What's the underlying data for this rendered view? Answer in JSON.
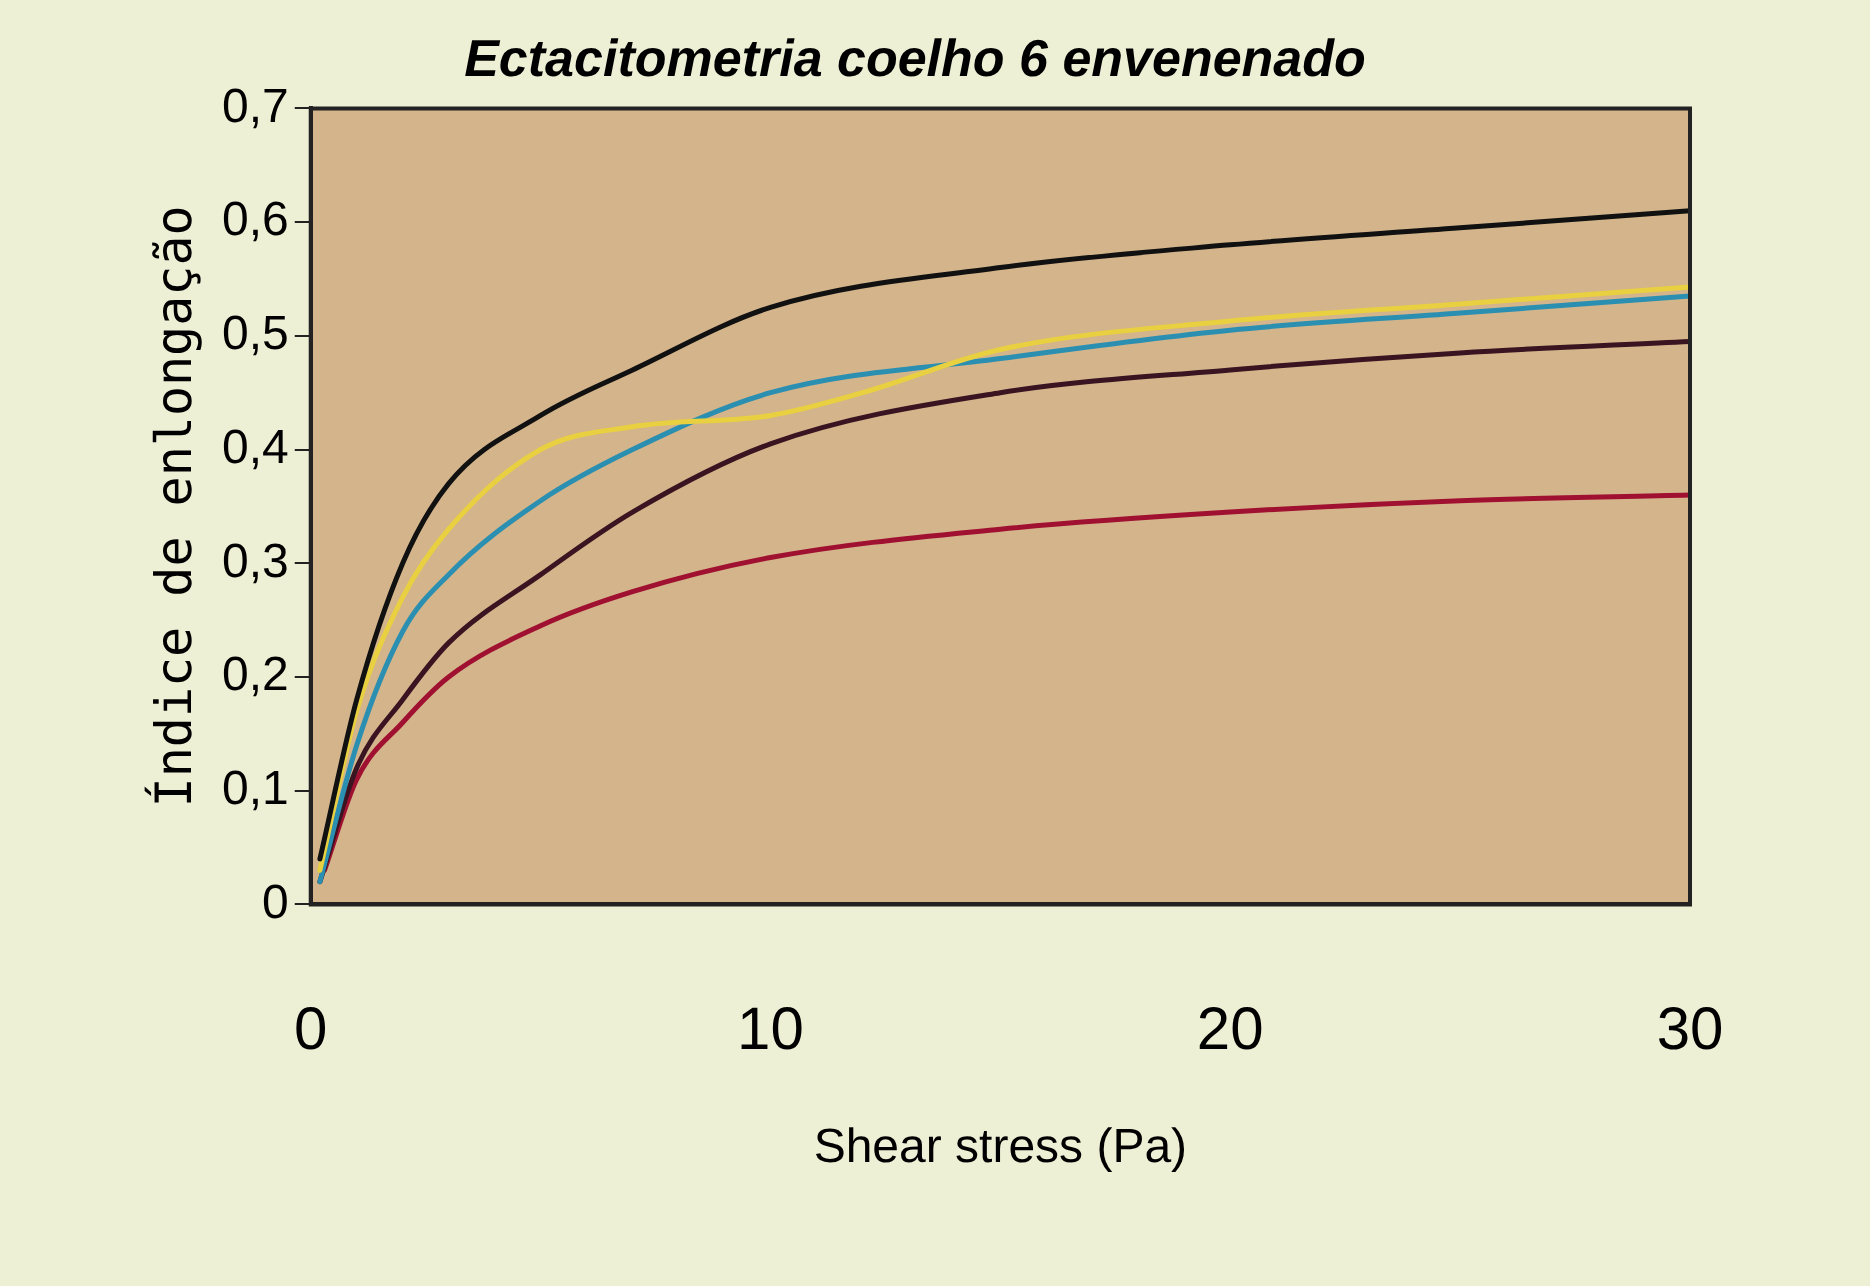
{
  "chart_data": {
    "type": "line",
    "title": "Ectacitometria coelho 6 envenenado",
    "xlabel": "Shear stress (Pa)",
    "ylabel": "Índice de enlongação",
    "xlim": [
      0,
      30
    ],
    "xticks": [
      0,
      10,
      20,
      30
    ],
    "ylim": [
      0,
      0.7
    ],
    "yticks": [
      {
        "value": 0,
        "label": "0"
      },
      {
        "value": 0.1,
        "label": "0,1"
      },
      {
        "value": 0.2,
        "label": "0,2"
      },
      {
        "value": 0.3,
        "label": "0,3"
      },
      {
        "value": 0.4,
        "label": "0,4"
      },
      {
        "value": 0.5,
        "label": "0,5"
      },
      {
        "value": 0.6,
        "label": "0,6"
      },
      {
        "value": 0.7,
        "label": "0,7"
      }
    ],
    "grid": false,
    "legend": false,
    "marker": "none",
    "line_style": "solid",
    "series": [
      {
        "color": "#111111",
        "x": [
          0.2,
          1,
          2,
          3,
          5,
          7,
          10,
          15,
          20,
          25,
          30
        ],
        "values": [
          0.04,
          0.18,
          0.3,
          0.37,
          0.43,
          0.47,
          0.525,
          0.56,
          0.58,
          0.595,
          0.61
        ]
      },
      {
        "color": "#e8d040",
        "x": [
          0.2,
          1,
          2,
          3,
          5,
          7,
          10,
          12,
          15,
          20,
          25,
          30
        ],
        "values": [
          0.03,
          0.17,
          0.27,
          0.33,
          0.4,
          0.42,
          0.43,
          0.45,
          0.488,
          0.513,
          0.528,
          0.543
        ]
      },
      {
        "color": "#2a8fb0",
        "x": [
          0.2,
          1,
          2,
          3,
          5,
          7,
          10,
          15,
          20,
          25,
          30
        ],
        "values": [
          0.02,
          0.14,
          0.24,
          0.29,
          0.355,
          0.4,
          0.45,
          0.48,
          0.505,
          0.52,
          0.535
        ]
      },
      {
        "color": "#3a1420",
        "x": [
          0.2,
          1,
          2,
          3,
          5,
          7,
          10,
          15,
          20,
          25,
          30
        ],
        "values": [
          0.02,
          0.12,
          0.18,
          0.23,
          0.29,
          0.345,
          0.405,
          0.45,
          0.47,
          0.485,
          0.495
        ]
      },
      {
        "color": "#a01030",
        "x": [
          0.3,
          1,
          2,
          3,
          5,
          7,
          10,
          15,
          20,
          25,
          30
        ],
        "values": [
          0.03,
          0.11,
          0.16,
          0.2,
          0.245,
          0.275,
          0.305,
          0.33,
          0.345,
          0.355,
          0.36
        ]
      }
    ]
  }
}
